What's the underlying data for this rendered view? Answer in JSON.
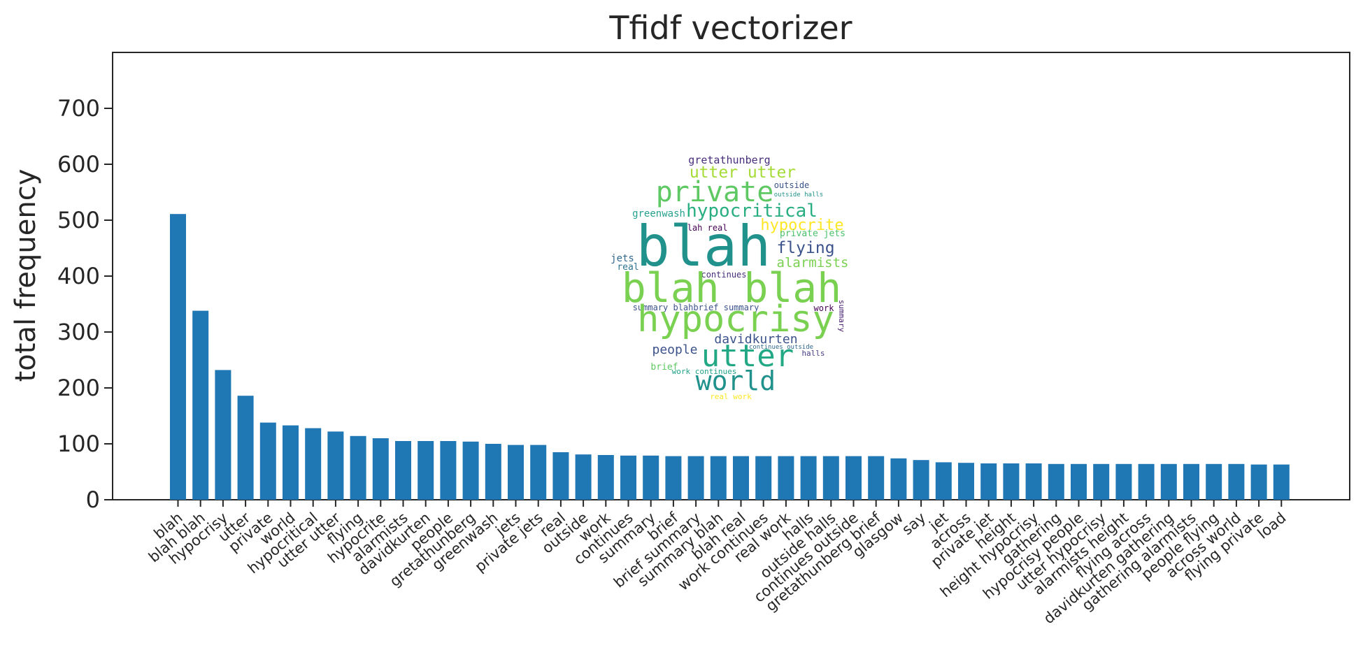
{
  "chart_data": {
    "type": "bar",
    "title": "Tfidf vectorizer",
    "xlabel": "",
    "ylabel": "total frequency",
    "ylim": [
      0,
      800
    ],
    "yticks": [
      0,
      100,
      200,
      300,
      400,
      500,
      600,
      700
    ],
    "grid": false,
    "bar_color": "#1f77b4",
    "categories": [
      "blah",
      "blah blah",
      "hypocrisy",
      "utter",
      "private",
      "world",
      "hypocritical",
      "utter utter",
      "flying",
      "hypocrite",
      "alarmists",
      "davidkurten",
      "people",
      "gretathunberg",
      "greenwash",
      "jets",
      "private jets",
      "real",
      "outside",
      "work",
      "continues",
      "summary",
      "brief",
      "brief summary",
      "summary blah",
      "blah real",
      "work continues",
      "real work",
      "halls",
      "outside halls",
      "continues outside",
      "gretathunberg brief",
      "glasgow",
      "say",
      "jet",
      "across",
      "private jet",
      "height",
      "height hypocrisy",
      "gathering",
      "hypocrisy people",
      "utter hypocrisy",
      "alarmists height",
      "flying across",
      "davidkurten gathering",
      "gathering alarmists",
      "people flying",
      "across world",
      "flying private",
      "load"
    ],
    "values": [
      511,
      338,
      232,
      186,
      138,
      133,
      128,
      122,
      114,
      110,
      105,
      105,
      105,
      104,
      100,
      98,
      98,
      85,
      81,
      80,
      79,
      79,
      78,
      78,
      78,
      78,
      78,
      78,
      78,
      78,
      78,
      78,
      74,
      71,
      67,
      66,
      65,
      65,
      65,
      64,
      64,
      64,
      64,
      64,
      64,
      64,
      64,
      64,
      63,
      63
    ],
    "wordcloud": {
      "words": [
        {
          "text": "gretathunberg",
          "color": "#472d7b"
        },
        {
          "text": "utter utter",
          "color": "#a5db36"
        },
        {
          "text": "outside",
          "color": "#3b528b"
        },
        {
          "text": "private",
          "color": "#5ec962"
        },
        {
          "text": "outside halls",
          "color": "#21918c"
        },
        {
          "text": "greenwash",
          "color": "#25a18e"
        },
        {
          "text": "hypocritical",
          "color": "#28ae80"
        },
        {
          "text": "hypocrite",
          "color": "#fde725"
        },
        {
          "text": "blah real",
          "color": "#440154"
        },
        {
          "text": "private jets",
          "color": "#4ac16d"
        },
        {
          "text": "blah",
          "color": "#21918c"
        },
        {
          "text": "flying",
          "color": "#3b528b"
        },
        {
          "text": "jets",
          "color": "#31688e"
        },
        {
          "text": "alarmists",
          "color": "#7ad151"
        },
        {
          "text": "real",
          "color": "#2c728e"
        },
        {
          "text": "continues",
          "color": "#472d7b"
        },
        {
          "text": "blah blah",
          "color": "#7ad151"
        },
        {
          "text": "summary blahbrief summary",
          "color": "#3b528b"
        },
        {
          "text": "work",
          "color": "#440154"
        },
        {
          "text": "summary",
          "color": "#482173"
        },
        {
          "text": "hypocrisy",
          "color": "#7ad151"
        },
        {
          "text": "davidkurten",
          "color": "#3b528b"
        },
        {
          "text": "people",
          "color": "#3b528b"
        },
        {
          "text": "continues outside",
          "color": "#31688e"
        },
        {
          "text": "utter",
          "color": "#22a884"
        },
        {
          "text": "halls",
          "color": "#443983"
        },
        {
          "text": "brief",
          "color": "#5ec962"
        },
        {
          "text": "work continues",
          "color": "#1fa187"
        },
        {
          "text": "world",
          "color": "#21918c"
        },
        {
          "text": "real work",
          "color": "#fde725"
        }
      ]
    }
  }
}
